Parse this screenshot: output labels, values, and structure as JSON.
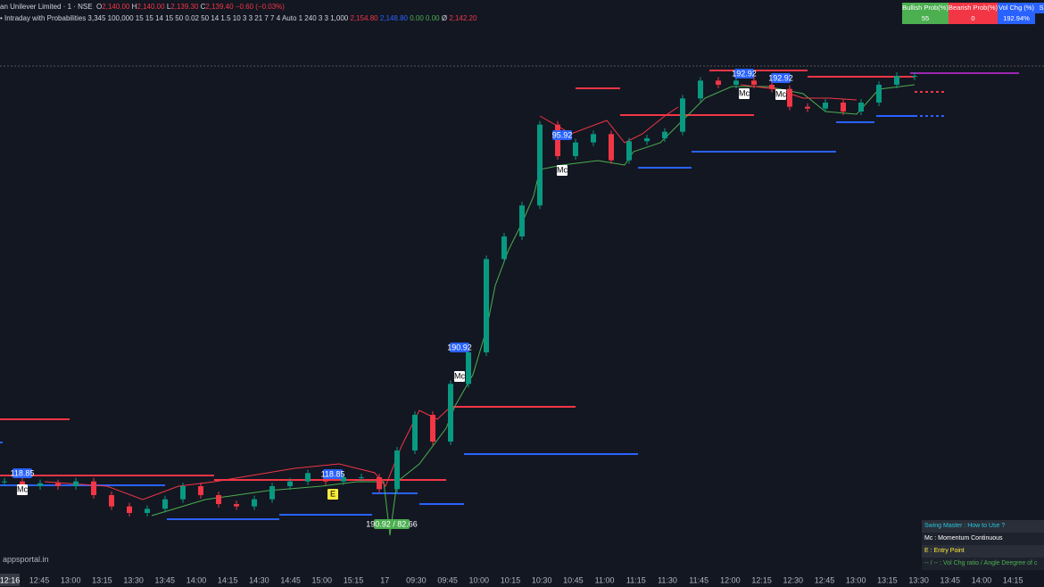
{
  "header": {
    "symbol": "an Unilever Limited · 1 · NSE",
    "ohlc": [
      {
        "key": "O",
        "value": "2,140.00"
      },
      {
        "key": "H",
        "value": "2,140.00"
      },
      {
        "key": "L",
        "value": "2,139.30"
      },
      {
        "key": "C",
        "value": "2,139.40"
      }
    ],
    "change": "−0.60 (−0.03%)",
    "indicator": "Intraday with Probabilities 3,345 100,000 15 15 14 15 50 0.02 50 14 1.5 10 3 3 21 7 7 4 Auto 1 240 3 3 1,000",
    "indicator_values": [
      "2,154.80",
      "2,148.80",
      "0.00",
      "0.00",
      "Ø",
      "2,142.20"
    ]
  },
  "table": {
    "headers": [
      "Bullish Prob(%)",
      "Bearish Prob(%)",
      "Vol Chg (%)",
      "Sig"
    ],
    "values": [
      "55",
      "0",
      "192.94%"
    ]
  },
  "price": {
    "values": [
      2071.2,
      2070.4,
      2070.9,
      2070.4,
      2071.2,
      2068.9,
      2067.0,
      2065.9,
      2066.6,
      2068.2,
      2070.4,
      2068.9,
      2067.4,
      2067.0,
      2068.2,
      2070.4,
      2071.2,
      2072.6,
      2071.2,
      2071.9,
      2071.9,
      2069.9,
      2076.4,
      2082.4,
      2077.9,
      2087.6,
      2092.9,
      2108.6,
      2112.4,
      2117.6,
      2131.2,
      2125.9,
      2128.2,
      2129.6,
      2125.2,
      2128.4,
      2128.9,
      2130.0,
      2135.6,
      2138.6,
      2137.9,
      2138.6,
      2137.9,
      2137.2,
      2134.2,
      2133.9,
      2134.9,
      2133.4,
      2134.9,
      2137.9,
      2139.4,
      2139.4
    ]
  },
  "markers": [
    "118.85",
    "118.85",
    "190.92",
    "95.92",
    "192.92",
    "192.92"
  ],
  "tags": [
    "Mc",
    "E",
    "Mc",
    "Mc",
    "Mc",
    "Mc"
  ],
  "entry_label": "190.92 / 82.66",
  "legend": {
    "title": "Swing Master : How to Use ?",
    "lines": [
      "Mc : Momentum Continuous",
      "E : Entry Point",
      "-- / -- : Vol Chg ratio / Angle Deegree of c"
    ]
  },
  "watermark": "appsportal.in",
  "time_axis": {
    "cursor": "12:16",
    "labels": [
      "12:45",
      "13:00",
      "13:15",
      "13:30",
      "13:45",
      "14:00",
      "14:15",
      "14:30",
      "14:45",
      "15:00",
      "15:15",
      "17",
      "09:30",
      "09:45",
      "10:00",
      "10:15",
      "10:30",
      "10:45",
      "11:00",
      "11:15",
      "11:30",
      "11:45",
      "12:00",
      "12:15",
      "12:30",
      "12:45",
      "13:00",
      "13:15",
      "13:30",
      "13:45",
      "14:00",
      "14:15"
    ]
  }
}
